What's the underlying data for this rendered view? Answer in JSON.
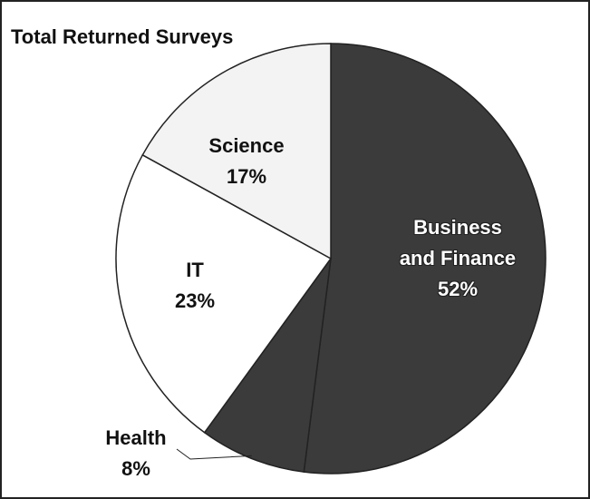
{
  "chart_data": {
    "type": "pie",
    "title": "Total Returned Surveys",
    "categories": [
      "Business and Finance",
      "Health",
      "IT",
      "Science"
    ],
    "values": [
      52,
      8,
      23,
      17
    ],
    "value_labels": [
      "52%",
      "8%",
      "23%",
      "17%"
    ],
    "colors": [
      "#3b3b3b",
      "#3b3b3b",
      "#ffffff",
      "#f3f3f3"
    ]
  }
}
